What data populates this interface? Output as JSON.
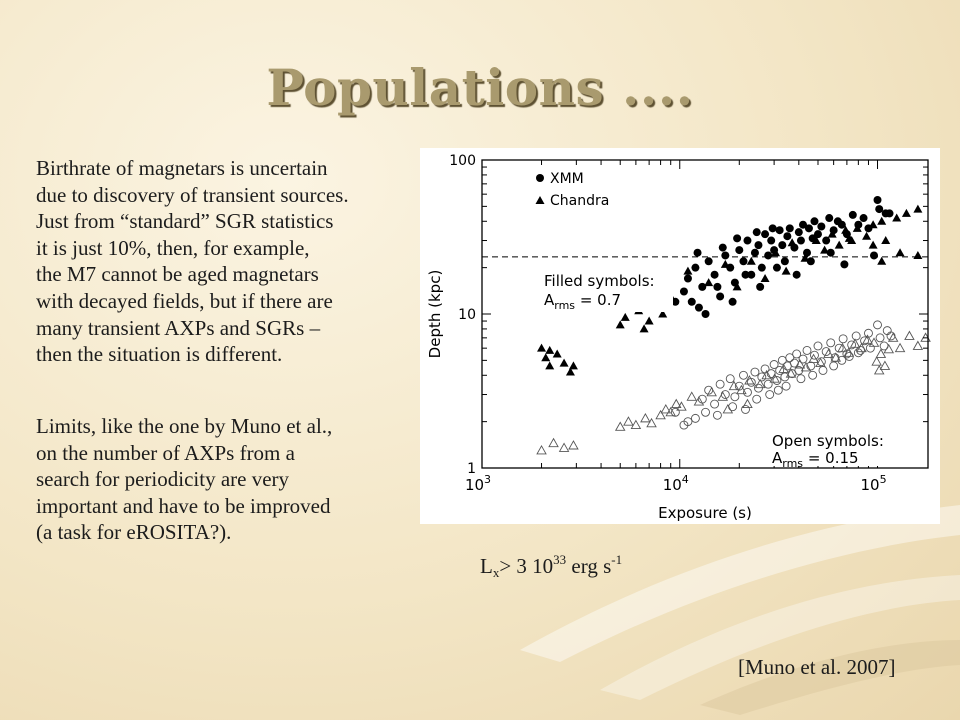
{
  "slide": {
    "title": "Populations ....",
    "paragraph1": [
      "Birthrate of  magnetars is uncertain",
      "due to discovery of  transient sources.",
      "Just from “standard” SGR statistics",
      "it is just 10%, then, for example,",
      "the M7 cannot be aged magnetars",
      "with decayed fields, but if  there are",
      "many transient AXPs and SGRs –",
      "then the situation is different."
    ],
    "paragraph2": [
      "Limits, like the one by Muno et al.,",
      "on the number of  AXPs from a",
      "search for periodicity are very",
      "important and have to be improved",
      "(a task for eROSITA?)."
    ],
    "caption": {
      "l": "L",
      "x": "x",
      "gt": "> 3 10",
      "exp": "33",
      "unit": " erg s",
      "unit_exp": "-1"
    },
    "reference": "[Muno et al. 2007]"
  },
  "chart_data": {
    "type": "scatter",
    "xlabel": "Exposure (s)",
    "ylabel": "Depth (kpc)",
    "x_scale": "log",
    "y_scale": "log",
    "xlim": [
      1000,
      180000
    ],
    "ylim": [
      1,
      100
    ],
    "x_ticks": [
      1000,
      10000,
      100000
    ],
    "x_tick_labels": [
      {
        "base": "10",
        "exp": "3"
      },
      {
        "base": "10",
        "exp": "4"
      },
      {
        "base": "10",
        "exp": "5"
      }
    ],
    "y_ticks": [
      1,
      10,
      100
    ],
    "y_tick_labels": [
      "1",
      "10",
      "100"
    ],
    "legend": {
      "position": "top-left",
      "entries": [
        {
          "marker": "circle",
          "label": "XMM"
        },
        {
          "marker": "triangle",
          "label": "Chandra"
        }
      ]
    },
    "reference_line": {
      "y": 23.5,
      "style": "dashed"
    },
    "annotations": [
      {
        "line1": "Filled symbols:",
        "a": "A",
        "sub": "rms",
        "value": " = 0.7"
      },
      {
        "line1": "Open symbols:",
        "a": "A",
        "sub": "rms",
        "value": " = 0.15"
      }
    ],
    "series": [
      {
        "name": "XMM",
        "marker": "circle",
        "fill": "filled",
        "points": [
          [
            8500,
            11
          ],
          [
            9500,
            12
          ],
          [
            10500,
            14
          ],
          [
            11000,
            17
          ],
          [
            12000,
            20
          ],
          [
            12500,
            11
          ],
          [
            13000,
            15
          ],
          [
            14000,
            22
          ],
          [
            15000,
            18
          ],
          [
            16000,
            13
          ],
          [
            17000,
            24
          ],
          [
            18000,
            20
          ],
          [
            19000,
            16
          ],
          [
            20000,
            26
          ],
          [
            21000,
            22
          ],
          [
            22000,
            30
          ],
          [
            23000,
            18
          ],
          [
            24000,
            25
          ],
          [
            25000,
            28
          ],
          [
            26000,
            20
          ],
          [
            27000,
            33
          ],
          [
            28000,
            24
          ],
          [
            29000,
            30
          ],
          [
            30000,
            26
          ],
          [
            32000,
            35
          ],
          [
            33000,
            28
          ],
          [
            34000,
            22
          ],
          [
            35000,
            32
          ],
          [
            36000,
            36
          ],
          [
            38000,
            27
          ],
          [
            40000,
            34
          ],
          [
            41000,
            30
          ],
          [
            42000,
            38
          ],
          [
            44000,
            25
          ],
          [
            45000,
            36
          ],
          [
            47000,
            31
          ],
          [
            48000,
            40
          ],
          [
            50000,
            33
          ],
          [
            52000,
            37
          ],
          [
            55000,
            30
          ],
          [
            57000,
            42
          ],
          [
            60000,
            35
          ],
          [
            63000,
            40
          ],
          [
            66000,
            38
          ],
          [
            70000,
            33
          ],
          [
            75000,
            44
          ],
          [
            80000,
            38
          ],
          [
            85000,
            42
          ],
          [
            90000,
            36
          ],
          [
            100000,
            55
          ],
          [
            102000,
            48
          ],
          [
            110000,
            45
          ],
          [
            115000,
            45
          ],
          [
            11500,
            12
          ],
          [
            13500,
            10
          ],
          [
            15500,
            15
          ],
          [
            18500,
            12
          ],
          [
            21500,
            18
          ],
          [
            25500,
            15
          ],
          [
            31000,
            20
          ],
          [
            39000,
            18
          ],
          [
            46000,
            22
          ],
          [
            58000,
            25
          ],
          [
            68000,
            21
          ],
          [
            96000,
            24
          ],
          [
            12300,
            25
          ],
          [
            16500,
            27
          ],
          [
            19500,
            31
          ],
          [
            24500,
            34
          ],
          [
            29500,
            36
          ]
        ]
      },
      {
        "name": "Chandra",
        "marker": "triangle",
        "fill": "filled",
        "points": [
          [
            2000,
            6
          ],
          [
            2100,
            5.2
          ],
          [
            2200,
            4.6
          ],
          [
            2400,
            5.5
          ],
          [
            2600,
            4.8
          ],
          [
            2800,
            4.2
          ],
          [
            2900,
            4.6
          ],
          [
            2200,
            5.8
          ],
          [
            5000,
            8.5
          ],
          [
            5300,
            9.5
          ],
          [
            6200,
            10.5
          ],
          [
            6600,
            8
          ],
          [
            7000,
            9
          ],
          [
            7600,
            12
          ],
          [
            8200,
            10
          ],
          [
            7300,
            11
          ],
          [
            9000,
            13
          ],
          [
            11000,
            19
          ],
          [
            14000,
            16
          ],
          [
            17000,
            21
          ],
          [
            19500,
            15
          ],
          [
            23000,
            22
          ],
          [
            27000,
            17
          ],
          [
            30500,
            25
          ],
          [
            34500,
            19
          ],
          [
            37000,
            29
          ],
          [
            43000,
            23
          ],
          [
            49000,
            30
          ],
          [
            54000,
            26
          ],
          [
            59000,
            33
          ],
          [
            64000,
            28
          ],
          [
            69000,
            35
          ],
          [
            74000,
            30
          ],
          [
            79000,
            36
          ],
          [
            88000,
            32
          ],
          [
            95000,
            38
          ],
          [
            105000,
            40
          ],
          [
            125000,
            42
          ],
          [
            140000,
            45
          ],
          [
            160000,
            48
          ],
          [
            110000,
            30
          ],
          [
            130000,
            25
          ],
          [
            160000,
            24
          ],
          [
            105000,
            22
          ],
          [
            95000,
            28
          ],
          [
            72000,
            31
          ]
        ]
      },
      {
        "name": "XMM",
        "marker": "circle",
        "fill": "open",
        "points": [
          [
            13000,
            2.8
          ],
          [
            14000,
            3.2
          ],
          [
            15000,
            2.6
          ],
          [
            16000,
            3.5
          ],
          [
            17000,
            3.0
          ],
          [
            18000,
            3.8
          ],
          [
            19000,
            2.9
          ],
          [
            20000,
            3.4
          ],
          [
            21000,
            4.0
          ],
          [
            22000,
            3.1
          ],
          [
            23000,
            3.6
          ],
          [
            24000,
            4.2
          ],
          [
            25000,
            3.3
          ],
          [
            26000,
            3.9
          ],
          [
            27000,
            4.4
          ],
          [
            28000,
            3.5
          ],
          [
            29000,
            4.1
          ],
          [
            30000,
            4.7
          ],
          [
            31000,
            3.7
          ],
          [
            32000,
            4.3
          ],
          [
            33000,
            5.0
          ],
          [
            34000,
            3.9
          ],
          [
            35000,
            4.6
          ],
          [
            36000,
            5.2
          ],
          [
            37000,
            4.1
          ],
          [
            38000,
            4.8
          ],
          [
            39000,
            5.5
          ],
          [
            40000,
            4.3
          ],
          [
            42000,
            5.1
          ],
          [
            44000,
            5.8
          ],
          [
            46000,
            4.6
          ],
          [
            48000,
            5.4
          ],
          [
            50000,
            6.2
          ],
          [
            52000,
            4.9
          ],
          [
            55000,
            5.7
          ],
          [
            58000,
            6.5
          ],
          [
            61000,
            5.2
          ],
          [
            64000,
            6.0
          ],
          [
            67000,
            6.9
          ],
          [
            70000,
            5.5
          ],
          [
            74000,
            6.3
          ],
          [
            78000,
            7.2
          ],
          [
            82000,
            5.8
          ],
          [
            86000,
            6.7
          ],
          [
            90000,
            7.5
          ],
          [
            100000,
            8.5
          ],
          [
            103000,
            7.0
          ],
          [
            108000,
            6.2
          ],
          [
            112000,
            7.8
          ],
          [
            117000,
            7.2
          ],
          [
            13500,
            2.3
          ],
          [
            15500,
            2.2
          ],
          [
            18500,
            2.5
          ],
          [
            21500,
            2.4
          ],
          [
            24500,
            2.8
          ],
          [
            11000,
            2.0
          ],
          [
            12000,
            2.1
          ],
          [
            9500,
            2.3
          ],
          [
            10500,
            1.9
          ],
          [
            28500,
            3.0
          ],
          [
            31500,
            3.2
          ],
          [
            34500,
            3.4
          ],
          [
            41000,
            3.8
          ],
          [
            47000,
            4.0
          ],
          [
            53000,
            4.3
          ],
          [
            60000,
            4.6
          ],
          [
            66000,
            5.0
          ],
          [
            72000,
            5.3
          ],
          [
            80000,
            5.6
          ],
          [
            92000,
            6.0
          ]
        ]
      },
      {
        "name": "Chandra",
        "marker": "triangle",
        "fill": "open",
        "points": [
          [
            2000,
            1.3
          ],
          [
            2300,
            1.45
          ],
          [
            2600,
            1.35
          ],
          [
            2900,
            1.4
          ],
          [
            5000,
            1.85
          ],
          [
            5500,
            2.0
          ],
          [
            6000,
            1.9
          ],
          [
            6700,
            2.1
          ],
          [
            7200,
            1.95
          ],
          [
            8000,
            2.2
          ],
          [
            8500,
            2.4
          ],
          [
            9000,
            2.3
          ],
          [
            9600,
            2.6
          ],
          [
            10200,
            2.5
          ],
          [
            11500,
            2.9
          ],
          [
            12500,
            2.7
          ],
          [
            14500,
            3.1
          ],
          [
            16500,
            2.9
          ],
          [
            18800,
            3.4
          ],
          [
            20500,
            3.2
          ],
          [
            22500,
            3.7
          ],
          [
            25500,
            3.5
          ],
          [
            27500,
            4.0
          ],
          [
            30200,
            3.8
          ],
          [
            33500,
            4.4
          ],
          [
            36500,
            4.1
          ],
          [
            40500,
            4.7
          ],
          [
            43500,
            4.5
          ],
          [
            47500,
            5.1
          ],
          [
            51500,
            4.8
          ],
          [
            56500,
            5.5
          ],
          [
            61500,
            5.2
          ],
          [
            66500,
            6.0
          ],
          [
            71500,
            5.6
          ],
          [
            77000,
            6.4
          ],
          [
            83000,
            6.0
          ],
          [
            89000,
            6.8
          ],
          [
            96000,
            6.5
          ],
          [
            104000,
            5.5
          ],
          [
            109000,
            4.6
          ],
          [
            114000,
            5.9
          ],
          [
            120000,
            7.0
          ],
          [
            130000,
            6.0
          ],
          [
            145000,
            7.2
          ],
          [
            160000,
            6.2
          ],
          [
            175000,
            7.0
          ],
          [
            99000,
            4.9
          ],
          [
            102000,
            4.3
          ],
          [
            17500,
            2.4
          ],
          [
            22000,
            2.6
          ]
        ]
      }
    ]
  }
}
